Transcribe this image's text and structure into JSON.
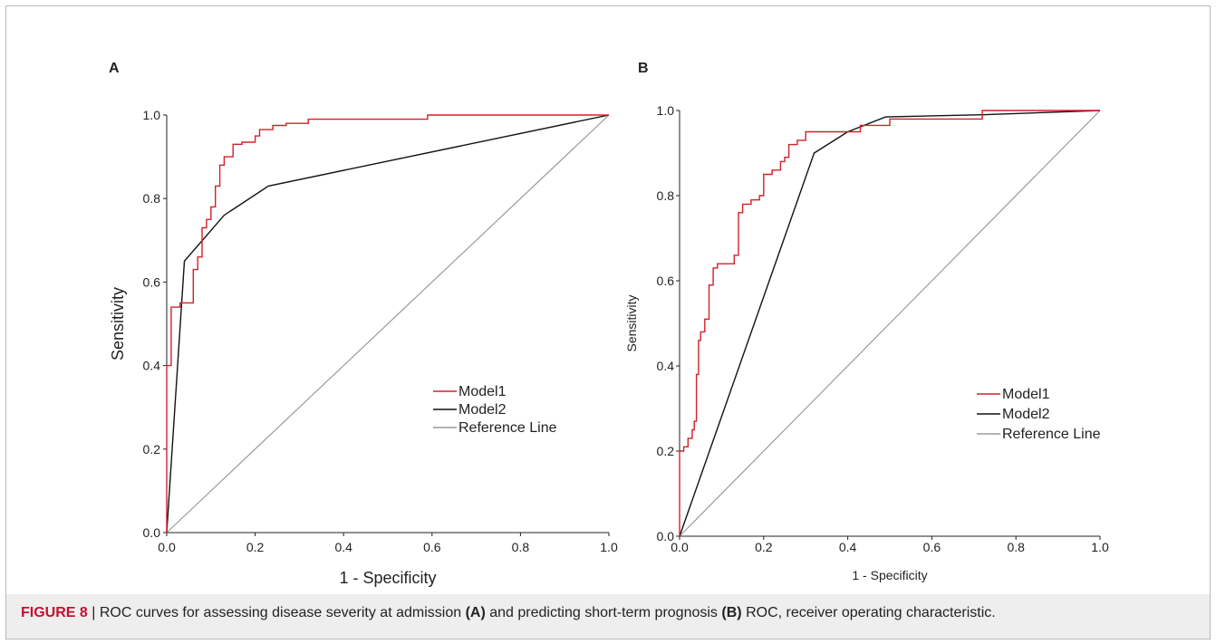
{
  "figure": {
    "caption": {
      "label": "FIGURE 8",
      "separator": "|",
      "part1": "ROC curves for assessing disease severity at admission",
      "ref_a": "(A)",
      "part2": "and predicting short-term prognosis",
      "ref_b": "(B)",
      "part3": "ROC, receiver operating characteristic."
    }
  },
  "colors": {
    "model1": "#d4202a",
    "model2": "#111111",
    "reference": "#9a9a9a"
  },
  "chart_data": [
    {
      "type": "line",
      "panel": "A",
      "xlabel": "1 - Specificity",
      "ylabel": "Sensitivity",
      "xlim": [
        0,
        1
      ],
      "ylim": [
        0,
        1
      ],
      "xticks": [
        "0.0",
        "0.2",
        "0.4",
        "0.6",
        "0.8",
        "1.0"
      ],
      "yticks": [
        "0.0",
        "0.2",
        "0.4",
        "0.6",
        "0.8",
        "1.0"
      ],
      "grid": false,
      "legend": "bottom-right",
      "series": [
        {
          "name": "Model1",
          "color": "#d4202a",
          "steps": true,
          "x": [
            0,
            0,
            0.01,
            0.01,
            0.03,
            0.03,
            0.06,
            0.06,
            0.07,
            0.07,
            0.08,
            0.08,
            0.09,
            0.09,
            0.1,
            0.1,
            0.11,
            0.11,
            0.12,
            0.12,
            0.13,
            0.13,
            0.15,
            0.15,
            0.17,
            0.17,
            0.2,
            0.2,
            0.21,
            0.21,
            0.24,
            0.24,
            0.27,
            0.27,
            0.32,
            0.32,
            0.59,
            0.59,
            1.0
          ],
          "y": [
            0,
            0.4,
            0.4,
            0.54,
            0.54,
            0.55,
            0.55,
            0.63,
            0.63,
            0.66,
            0.66,
            0.73,
            0.73,
            0.75,
            0.75,
            0.78,
            0.78,
            0.83,
            0.83,
            0.88,
            0.88,
            0.9,
            0.9,
            0.93,
            0.93,
            0.935,
            0.935,
            0.95,
            0.95,
            0.965,
            0.965,
            0.975,
            0.975,
            0.98,
            0.98,
            0.99,
            0.99,
            1.0,
            1.0
          ]
        },
        {
          "name": "Model2",
          "color": "#111111",
          "x": [
            0,
            0.04,
            0.13,
            0.23,
            1.0
          ],
          "y": [
            0,
            0.65,
            0.76,
            0.83,
            1.0
          ]
        },
        {
          "name": "Reference Line",
          "color": "#9a9a9a",
          "x": [
            0,
            1
          ],
          "y": [
            0,
            1
          ]
        }
      ]
    },
    {
      "type": "line",
      "panel": "B",
      "xlabel": "1 - Specificity",
      "ylabel": "Sensitivity",
      "xlim": [
        0,
        1
      ],
      "ylim": [
        0,
        1
      ],
      "xticks": [
        "0.0",
        "0.2",
        "0.4",
        "0.6",
        "0.8",
        "1.0"
      ],
      "yticks": [
        "0.0",
        "0.2",
        "0.4",
        "0.6",
        "0.8",
        "1.0"
      ],
      "grid": false,
      "legend": "bottom-right",
      "series": [
        {
          "name": "Model1",
          "color": "#d4202a",
          "steps": true,
          "x": [
            0,
            0,
            0.01,
            0.01,
            0.02,
            0.02,
            0.03,
            0.03,
            0.035,
            0.035,
            0.04,
            0.04,
            0.045,
            0.045,
            0.05,
            0.05,
            0.06,
            0.06,
            0.07,
            0.07,
            0.08,
            0.08,
            0.09,
            0.09,
            0.13,
            0.13,
            0.14,
            0.14,
            0.15,
            0.15,
            0.17,
            0.17,
            0.19,
            0.19,
            0.2,
            0.2,
            0.22,
            0.22,
            0.24,
            0.24,
            0.25,
            0.25,
            0.26,
            0.26,
            0.28,
            0.28,
            0.3,
            0.3,
            0.43,
            0.43,
            0.5,
            0.5,
            0.72,
            0.72,
            1.0
          ],
          "y": [
            0,
            0.2,
            0.2,
            0.21,
            0.21,
            0.23,
            0.23,
            0.25,
            0.25,
            0.27,
            0.27,
            0.38,
            0.38,
            0.46,
            0.46,
            0.48,
            0.48,
            0.51,
            0.51,
            0.59,
            0.59,
            0.63,
            0.63,
            0.64,
            0.64,
            0.66,
            0.66,
            0.76,
            0.76,
            0.78,
            0.78,
            0.79,
            0.79,
            0.8,
            0.8,
            0.85,
            0.85,
            0.86,
            0.86,
            0.88,
            0.88,
            0.89,
            0.89,
            0.92,
            0.92,
            0.93,
            0.93,
            0.95,
            0.95,
            0.965,
            0.965,
            0.98,
            0.98,
            1.0,
            1.0
          ]
        },
        {
          "name": "Model2",
          "color": "#111111",
          "x": [
            0,
            0.32,
            0.4,
            0.49,
            0.72,
            1.0
          ],
          "y": [
            0,
            0.9,
            0.95,
            0.985,
            0.99,
            1.0
          ]
        },
        {
          "name": "Reference Line",
          "color": "#9a9a9a",
          "x": [
            0,
            1
          ],
          "y": [
            0,
            1
          ]
        }
      ]
    }
  ]
}
